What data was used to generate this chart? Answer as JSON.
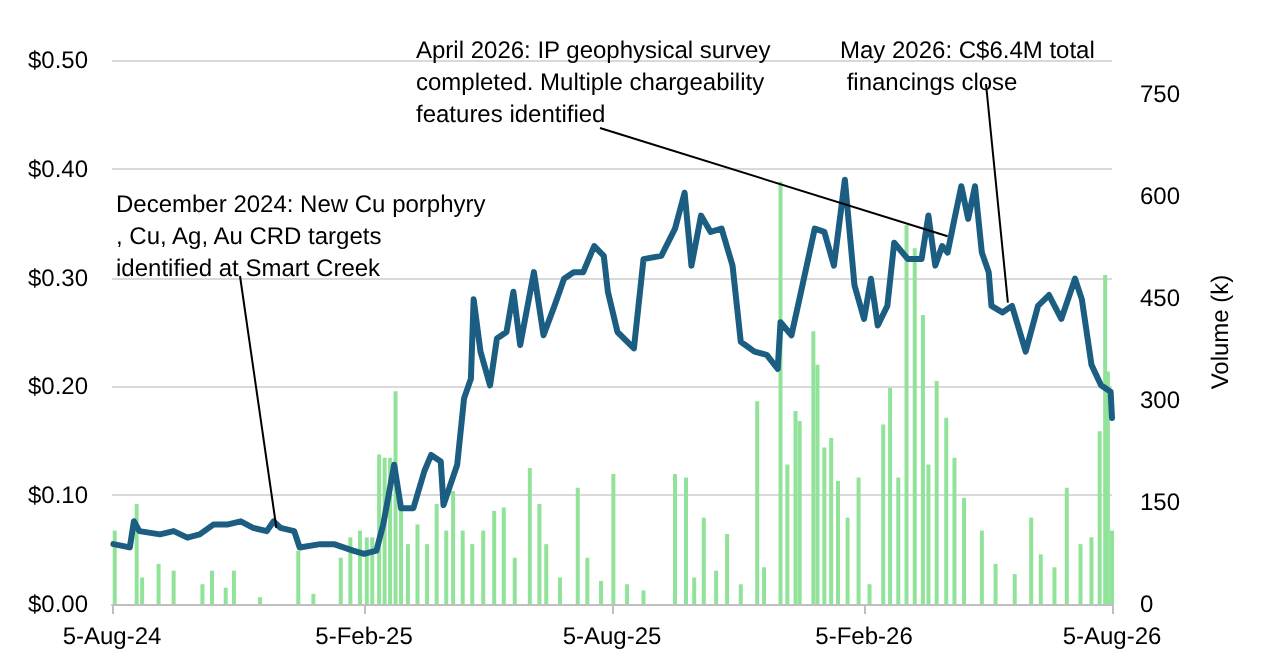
{
  "chart_data": {
    "type": "line",
    "ylabel": null,
    "y2label": "Volume (k)",
    "xlim": [
      "2024-08-05",
      "2026-08-05"
    ],
    "xticks": [
      {
        "value": "2024-08-05",
        "label": "5-Aug-24"
      },
      {
        "value": "2025-02-05",
        "label": "5-Feb-25"
      },
      {
        "value": "2025-08-05",
        "label": "5-Aug-25"
      },
      {
        "value": "2026-02-05",
        "label": "5-Feb-26"
      },
      {
        "value": "2026-08-05",
        "label": "5-Aug-26"
      }
    ],
    "ylim": [
      0,
      0.5
    ],
    "yticks": [
      {
        "value": 0,
        "label": "$0.00"
      },
      {
        "value": 0.1,
        "label": "$0.10"
      },
      {
        "value": 0.2,
        "label": "$0.20"
      },
      {
        "value": 0.3,
        "label": "$0.30"
      },
      {
        "value": 0.4,
        "label": "$0.40"
      },
      {
        "value": 0.5,
        "label": "$0.50"
      }
    ],
    "y2lim": [
      0,
      800
    ],
    "y2ticks": [
      0,
      150,
      300,
      450,
      600,
      750
    ],
    "grid": "y",
    "marker": "none",
    "line_style": "solid",
    "series": [
      {
        "type": "bar",
        "axis": "y2",
        "color": "#92e39a",
        "x": [
          "2024-08-07",
          "2024-08-23",
          "2024-08-27",
          "2024-09-08",
          "2024-09-19",
          "2024-10-10",
          "2024-10-17",
          "2024-10-27",
          "2024-11-02",
          "2024-11-21",
          "2024-12-19",
          "2024-12-30",
          "2025-01-19",
          "2025-01-26",
          "2025-02-02",
          "2025-02-07",
          "2025-02-11",
          "2025-02-16",
          "2025-02-20",
          "2025-02-24",
          "2025-02-28",
          "2025-03-04",
          "2025-03-09",
          "2025-03-16",
          "2025-03-23",
          "2025-03-30",
          "2025-04-06",
          "2025-04-11",
          "2025-04-18",
          "2025-04-25",
          "2025-05-03",
          "2025-05-11",
          "2025-05-18",
          "2025-05-26",
          "2025-06-06",
          "2025-06-13",
          "2025-06-18",
          "2025-06-28",
          "2025-07-11",
          "2025-07-18",
          "2025-07-28",
          "2025-08-06",
          "2025-08-16",
          "2025-08-28",
          "2025-09-20",
          "2025-09-28",
          "2025-10-04",
          "2025-10-11",
          "2025-10-20",
          "2025-10-28",
          "2025-11-07",
          "2025-11-19",
          "2025-11-24",
          "2025-12-06",
          "2025-12-11",
          "2025-12-17",
          "2025-12-20",
          "2025-12-30",
          "2026-01-02",
          "2026-01-07",
          "2026-01-12",
          "2026-01-17",
          "2026-01-24",
          "2026-02-01",
          "2026-02-09",
          "2026-02-19",
          "2026-02-24",
          "2026-03-02",
          "2026-03-08",
          "2026-03-14",
          "2026-03-20",
          "2026-03-24",
          "2026-03-30",
          "2026-04-06",
          "2026-04-12",
          "2026-04-19",
          "2026-05-02",
          "2026-05-12",
          "2026-05-26",
          "2026-06-07",
          "2026-06-14",
          "2026-06-24",
          "2026-07-03",
          "2026-07-13",
          "2026-07-21",
          "2026-07-27",
          "2026-07-31",
          "2026-08-02",
          "2026-08-05"
        ],
        "values": [
          108,
          147,
          39,
          59,
          49,
          29,
          49,
          24,
          49,
          10,
          78,
          15,
          68,
          98,
          108,
          98,
          98,
          220,
          215,
          215,
          313,
          147,
          88,
          117,
          88,
          147,
          108,
          166,
          108,
          88,
          108,
          137,
          142,
          68,
          200,
          147,
          88,
          39,
          171,
          68,
          34,
          191,
          29,
          20,
          191,
          186,
          39,
          127,
          49,
          103,
          29,
          298,
          54,
          621,
          205,
          284,
          269,
          401,
          352,
          230,
          244,
          181,
          127,
          186,
          29,
          264,
          318,
          186,
          557,
          523,
          425,
          205,
          328,
          274,
          215,
          156,
          108,
          59,
          44,
          127,
          73,
          54,
          171,
          88,
          98,
          254,
          484,
          342,
          108
        ]
      },
      {
        "color": "#1b5e82",
        "x": [
          "2024-08-06",
          "2024-08-18",
          "2024-08-21",
          "2024-08-25",
          "2024-09-09",
          "2024-09-19",
          "2024-09-29",
          "2024-10-08",
          "2024-10-18",
          "2024-10-28",
          "2024-11-07",
          "2024-11-16",
          "2024-11-26",
          "2024-12-01",
          "2024-12-06",
          "2024-12-16",
          "2024-12-20",
          "2025-01-04",
          "2025-01-14",
          "2025-01-28",
          "2025-02-05",
          "2025-02-14",
          "2025-02-19",
          "2025-02-27",
          "2025-03-04",
          "2025-03-13",
          "2025-03-21",
          "2025-03-26",
          "2025-04-02",
          "2025-04-04",
          "2025-04-14",
          "2025-04-19",
          "2025-04-24",
          "2025-04-26",
          "2025-05-01",
          "2025-05-08",
          "2025-05-13",
          "2025-05-20",
          "2025-05-25",
          "2025-05-30",
          "2025-06-09",
          "2025-06-16",
          "2025-06-24",
          "2025-07-01",
          "2025-07-08",
          "2025-07-15",
          "2025-07-23",
          "2025-07-30",
          "2025-08-02",
          "2025-08-09",
          "2025-08-21",
          "2025-08-28",
          "2025-09-10",
          "2025-09-20",
          "2025-09-27",
          "2025-10-02",
          "2025-10-09",
          "2025-10-16",
          "2025-10-24",
          "2025-11-01",
          "2025-11-07",
          "2025-11-17",
          "2025-11-26",
          "2025-12-04",
          "2025-12-06",
          "2025-12-14",
          "2025-12-21",
          "2025-12-31",
          "2026-01-07",
          "2026-01-14",
          "2026-01-22",
          "2026-01-29",
          "2026-02-05",
          "2026-02-10",
          "2026-02-15",
          "2026-02-22",
          "2026-02-27",
          "2026-03-09",
          "2026-03-19",
          "2026-03-24",
          "2026-03-29",
          "2026-04-03",
          "2026-04-07",
          "2026-04-12",
          "2026-04-17",
          "2026-04-22",
          "2026-04-27",
          "2026-05-02",
          "2026-05-07",
          "2026-05-09",
          "2026-05-17",
          "2026-05-24",
          "2026-06-03",
          "2026-06-12",
          "2026-06-20",
          "2026-06-29",
          "2026-07-09",
          "2026-07-14",
          "2026-07-21",
          "2026-07-28",
          "2026-08-04",
          "2026-08-05"
        ],
        "values": [
          0.055,
          0.052,
          0.076,
          0.067,
          0.064,
          0.067,
          0.061,
          0.064,
          0.073,
          0.073,
          0.076,
          0.07,
          0.067,
          0.076,
          0.07,
          0.067,
          0.052,
          0.055,
          0.055,
          0.049,
          0.046,
          0.049,
          0.073,
          0.128,
          0.088,
          0.088,
          0.122,
          0.137,
          0.131,
          0.091,
          0.128,
          0.189,
          0.207,
          0.28,
          0.232,
          0.201,
          0.244,
          0.25,
          0.287,
          0.238,
          0.305,
          0.247,
          0.274,
          0.299,
          0.305,
          0.305,
          0.329,
          0.32,
          0.287,
          0.25,
          0.235,
          0.317,
          0.32,
          0.345,
          0.378,
          0.311,
          0.357,
          0.342,
          0.345,
          0.311,
          0.241,
          0.232,
          0.229,
          0.216,
          0.259,
          0.247,
          0.287,
          0.345,
          0.342,
          0.311,
          0.39,
          0.293,
          0.262,
          0.299,
          0.256,
          0.274,
          0.332,
          0.317,
          0.317,
          0.357,
          0.311,
          0.329,
          0.323,
          0.354,
          0.384,
          0.354,
          0.384,
          0.323,
          0.305,
          0.274,
          0.268,
          0.274,
          0.232,
          0.274,
          0.284,
          0.262,
          0.299,
          0.28,
          0.22,
          0.201,
          0.195,
          0.171
        ]
      }
    ],
    "annotations": [
      {
        "text": "December 2024: New Cu porphyry, Cu, Ag, Au CRD targets identified at Smart Creek",
        "x": "2024-12-03",
        "y": 0.07
      },
      {
        "text": "April 2026: IP geophysical survey completed. Multiple chargeability features identified",
        "x": "2026-04-07",
        "y": 0.338
      },
      {
        "text": "May 2026: C$6.4M total financings close",
        "x": "2026-05-21",
        "y": 0.277
      }
    ]
  }
}
